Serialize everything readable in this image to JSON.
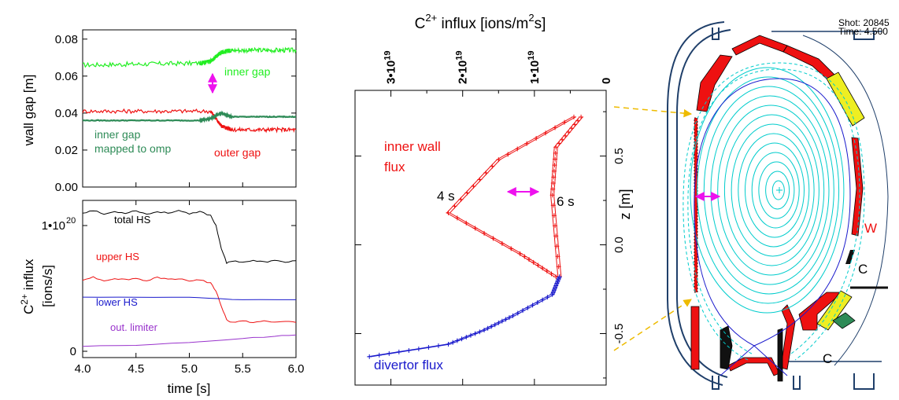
{
  "shot_info": {
    "shot": "Shot: 20845",
    "time": "Time:  4.500"
  },
  "colors": {
    "inner_gap": "#22ee22",
    "outer_gap": "#ee1111",
    "mapped": "#2e8b57",
    "total_hs": "#000000",
    "upper_hs": "#ee1111",
    "lower_hs": "#1a1acc",
    "out_limiter": "#9933cc",
    "arrow": "#ee11ee",
    "inner_wall": "#ee1111",
    "divertor": "#1a1acc",
    "flux_surface": "#00cccc",
    "separatrix": "#1a1acc",
    "tile_red": "#ee1111",
    "tile_yellow": "#eeee22",
    "leader": "#eebb00"
  },
  "chart_data": [
    {
      "type": "line",
      "ylabel": "wall gap [m]",
      "xlim": [
        4.0,
        6.0
      ],
      "ylim": [
        0,
        0.085
      ],
      "yticks": [
        "0.00",
        "0.02",
        "0.04",
        "0.06",
        "0.08"
      ],
      "ytick_values": [
        0,
        0.02,
        0.04,
        0.06,
        0.08
      ],
      "annotations": {
        "inner_gap": "inner gap",
        "mapped": [
          "inner gap",
          "mapped to omp"
        ],
        "outer_gap": "outer gap"
      },
      "series": [
        {
          "name": "inner gap",
          "x": [
            4.0,
            5.1,
            5.2,
            5.3,
            5.4,
            6.0
          ],
          "y": [
            0.066,
            0.067,
            0.068,
            0.073,
            0.074,
            0.074
          ]
        },
        {
          "name": "outer gap",
          "x": [
            4.0,
            5.2,
            5.3,
            5.4,
            6.0
          ],
          "y": [
            0.041,
            0.041,
            0.033,
            0.031,
            0.031
          ]
        },
        {
          "name": "inner gap mapped to omp",
          "x": [
            4.0,
            5.1,
            5.2,
            5.3,
            5.4,
            6.0
          ],
          "y": [
            0.036,
            0.036,
            0.037,
            0.04,
            0.038,
            0.038
          ]
        }
      ]
    },
    {
      "type": "line",
      "ylabel": [
        "C",
        "2+",
        " influx",
        "[ions/s]"
      ],
      "xlabel": "time [s]",
      "xlim": [
        4.0,
        6.0
      ],
      "ylim": [
        -5e+18,
        1.2e+20
      ],
      "yticks": [
        "1•10",
        "20",
        "0"
      ],
      "ytick_values": [
        1e+20,
        0
      ],
      "xticks": [
        "4.0",
        "4.5",
        "5.0",
        "5.5",
        "6.0"
      ],
      "xtick_values": [
        4.0,
        4.5,
        5.0,
        5.5,
        6.0
      ],
      "series": [
        {
          "name": "total HS",
          "x": [
            4.0,
            4.1,
            4.2,
            4.3,
            4.4,
            4.5,
            4.6,
            4.7,
            4.8,
            4.9,
            5.0,
            5.1,
            5.2,
            5.25,
            5.3,
            5.35,
            5.4,
            5.5,
            5.6,
            5.7,
            5.8,
            5.9,
            6.0
          ],
          "y": [
            1.1e+20,
            1.12e+20,
            1.09e+20,
            1.11e+20,
            1.1e+20,
            1.12e+20,
            1.09e+20,
            1.11e+20,
            1.1e+20,
            1.12e+20,
            1.09e+20,
            1.11e+20,
            1.08e+20,
            1e+20,
            8.2e+19,
            7e+19,
            7.2e+19,
            7.1e+19,
            7.2e+19,
            7.1e+19,
            7.2e+19,
            7.1e+19,
            7.2e+19
          ]
        },
        {
          "name": "upper HS",
          "x": [
            4.0,
            4.1,
            4.2,
            4.3,
            4.4,
            4.5,
            4.6,
            4.7,
            4.8,
            4.9,
            5.0,
            5.1,
            5.2,
            5.25,
            5.3,
            5.35,
            5.4,
            5.5,
            5.6,
            5.7,
            5.8,
            5.9,
            6.0
          ],
          "y": [
            5.7e+19,
            5.9e+19,
            5.6e+19,
            5.8e+19,
            5.7e+19,
            5.8e+19,
            5.6e+19,
            5.9e+19,
            5.7e+19,
            5.8e+19,
            5.6e+19,
            5.7e+19,
            5.4e+19,
            4.8e+19,
            3.6e+19,
            2.5e+19,
            2.3e+19,
            2.4e+19,
            2.3e+19,
            2.4e+19,
            2.3e+19,
            2.4e+19,
            2.3e+19
          ]
        },
        {
          "name": "lower HS",
          "x": [
            4.0,
            4.5,
            5.0,
            5.2,
            5.5,
            6.0
          ],
          "y": [
            4.3e+19,
            4.3e+19,
            4.3e+19,
            4.2e+19,
            4.1e+19,
            4.1e+19
          ]
        },
        {
          "name": "out. limiter",
          "x": [
            4.0,
            4.5,
            5.0,
            5.5,
            5.8,
            6.0
          ],
          "y": [
            4e+18,
            5e+18,
            7e+18,
            1e+19,
            1.2e+19,
            1.3e+19
          ]
        }
      ]
    },
    {
      "type": "line",
      "title": [
        "C",
        "2+",
        " influx [ions/m",
        "2",
        "s]"
      ],
      "ylabel": "z [m]",
      "xlim": [
        3.5e+19,
        0
      ],
      "ylim": [
        -0.79,
        0.87
      ],
      "xticks": [
        [
          "3•10",
          "19"
        ],
        [
          "2•10",
          "19"
        ],
        [
          "1•10",
          "19"
        ],
        [
          "0",
          ""
        ]
      ],
      "xtick_values": [
        3e+19,
        2e+19,
        1e+19,
        0
      ],
      "yticks": [
        "0.5",
        "0.0",
        "-0.5"
      ],
      "ytick_values": [
        0.5,
        0.0,
        -0.5
      ],
      "annotations": {
        "inner_wall": [
          "inner wall",
          "flux"
        ],
        "label_4s": "4 s",
        "label_6s": "6 s",
        "divertor": "divertor flux"
      },
      "series": [
        {
          "name": "inner wall flux 4 s",
          "x": [
            4.5e+18,
            1.5e+19,
            2.2e+19,
            1.2e+19,
            7e+18
          ],
          "y": [
            0.72,
            0.48,
            0.18,
            -0.05,
            -0.18
          ]
        },
        {
          "name": "inner wall flux 6 s",
          "x": [
            3.5e+18,
            7e+18,
            7.5e+18,
            6.5e+18
          ],
          "y": [
            0.72,
            0.55,
            0.28,
            -0.18
          ]
        },
        {
          "name": "divertor flux",
          "x": [
            6.5e+18,
            7.5e+18,
            1.3e+19,
            1.7e+19,
            2.2e+19,
            3.3e+19
          ],
          "y": [
            -0.18,
            -0.28,
            -0.4,
            -0.48,
            -0.56,
            -0.63
          ]
        }
      ]
    }
  ],
  "schematic": {
    "label_w": "W",
    "label_c1": "C",
    "label_c2": "C"
  }
}
